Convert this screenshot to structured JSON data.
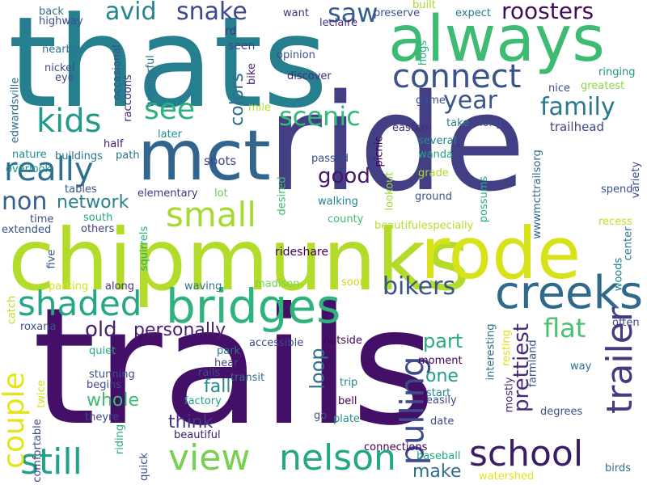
{
  "words": [
    {
      "text": "trails",
      "color": "#440f66",
      "vertical": false
    },
    {
      "text": "thats",
      "color": "#267f8e",
      "vertical": false
    },
    {
      "text": "ride",
      "color": "#433f85",
      "vertical": false
    },
    {
      "text": "chipmunks",
      "color": "#b2dc29",
      "vertical": false
    },
    {
      "text": "rode",
      "color": "#d8e219",
      "vertical": false
    },
    {
      "text": "always",
      "color": "#3ebb73",
      "vertical": false
    },
    {
      "text": "mct",
      "color": "#31658e",
      "vertical": false
    },
    {
      "text": "bridges",
      "color": "#2db37b",
      "vertical": false
    },
    {
      "text": "creeks",
      "color": "#2f6a8d",
      "vertical": false
    },
    {
      "text": "view",
      "color": "#78d052",
      "vertical": false
    },
    {
      "text": "nelson",
      "color": "#22a884",
      "vertical": false
    },
    {
      "text": "school",
      "color": "#3b1c66",
      "vertical": false
    },
    {
      "text": "still",
      "color": "#1fa288",
      "vertical": false
    },
    {
      "text": "connect",
      "color": "#3b528b",
      "vertical": false
    },
    {
      "text": "shaded",
      "color": "#24a784",
      "vertical": false
    },
    {
      "text": "really",
      "color": "#2d6f8e",
      "vertical": false
    },
    {
      "text": "kids",
      "color": "#1e9b8a",
      "vertical": false
    },
    {
      "text": "small",
      "color": "#a6da31",
      "vertical": false
    },
    {
      "text": "trailer",
      "color": "#433a83",
      "vertical": true
    },
    {
      "text": "pulling",
      "color": "#3e4a89",
      "vertical": true
    },
    {
      "text": "bikers",
      "color": "#3a548c",
      "vertical": false
    },
    {
      "text": "roosters",
      "color": "#440d5a",
      "vertical": false
    },
    {
      "text": "snake",
      "color": "#3e4989",
      "vertical": false
    },
    {
      "text": "avid",
      "color": "#25858e",
      "vertical": false
    },
    {
      "text": "saw",
      "color": "#365c8d",
      "vertical": false
    },
    {
      "text": "see",
      "color": "#2db27d",
      "vertical": false
    },
    {
      "text": "year",
      "color": "#39568c",
      "vertical": false
    },
    {
      "text": "family",
      "color": "#2a788e",
      "vertical": false
    },
    {
      "text": "scenic",
      "color": "#35b779",
      "vertical": false
    },
    {
      "text": "good",
      "color": "#481467",
      "vertical": false
    },
    {
      "text": "non",
      "color": "#355f8d",
      "vertical": false
    },
    {
      "text": "network",
      "color": "#26828e",
      "vertical": false
    },
    {
      "text": "couple",
      "color": "#e5e419",
      "vertical": true
    },
    {
      "text": "old",
      "color": "#482173",
      "vertical": false
    },
    {
      "text": "personally",
      "color": "#481d6f",
      "vertical": false
    },
    {
      "text": "flat",
      "color": "#4ac16d",
      "vertical": false
    },
    {
      "text": "prettiest",
      "color": "#482878",
      "vertical": true
    },
    {
      "text": "part",
      "color": "#27ad81",
      "vertical": false
    },
    {
      "text": "loop",
      "color": "#2c728e",
      "vertical": true
    },
    {
      "text": "one",
      "color": "#1f9e89",
      "vertical": false
    },
    {
      "text": "whole",
      "color": "#3dbc74",
      "vertical": false
    },
    {
      "text": "fall",
      "color": "#228d8d",
      "vertical": false
    },
    {
      "text": "think",
      "color": "#453781",
      "vertical": false
    },
    {
      "text": "make",
      "color": "#2d718e",
      "vertical": false
    },
    {
      "text": "colors",
      "color": "#2e6e8e",
      "vertical": true
    },
    {
      "text": "spots",
      "color": "#3f4788",
      "vertical": false
    },
    {
      "text": "back",
      "color": "#2c718e",
      "vertical": false
    },
    {
      "text": "highway",
      "color": "#3e4c8a",
      "vertical": false
    },
    {
      "text": "rd",
      "color": "#453882",
      "vertical": false
    },
    {
      "text": "seen",
      "color": "#3e4a89",
      "vertical": false
    },
    {
      "text": "want",
      "color": "#472c7a",
      "vertical": false
    },
    {
      "text": "built",
      "color": "#a2da37",
      "vertical": false
    },
    {
      "text": "preserve",
      "color": "#3b528b",
      "vertical": false
    },
    {
      "text": "expect",
      "color": "#2a7b8e",
      "vertical": false
    },
    {
      "text": "leclaire",
      "color": "#46307e",
      "vertical": false
    },
    {
      "text": "nearby",
      "color": "#2c728e",
      "vertical": false
    },
    {
      "text": "nickel",
      "color": "#3e4b8a",
      "vertical": false
    },
    {
      "text": "eye",
      "color": "#3d4e8a",
      "vertical": false
    },
    {
      "text": "occasional",
      "color": "#3a548c",
      "vertical": true
    },
    {
      "text": "raccoons",
      "color": "#482878",
      "vertical": true
    },
    {
      "text": "wonderful",
      "color": "#2d718e",
      "vertical": true
    },
    {
      "text": "bike",
      "color": "#482173",
      "vertical": true
    },
    {
      "text": "opinion",
      "color": "#3b528b",
      "vertical": false
    },
    {
      "text": "discover",
      "color": "#472a7a",
      "vertical": false
    },
    {
      "text": "hogs",
      "color": "#29af7f",
      "vertical": true
    },
    {
      "text": "ringing",
      "color": "#1f968b",
      "vertical": false
    },
    {
      "text": "nice",
      "color": "#3e4a89",
      "vertical": false
    },
    {
      "text": "greatest",
      "color": "#8bd646",
      "vertical": false
    },
    {
      "text": "edwardsville",
      "color": "#2e6f8e",
      "vertical": true
    },
    {
      "text": "mile",
      "color": "#b5de2b",
      "vertical": false
    },
    {
      "text": "game",
      "color": "#3e4c8a",
      "vertical": false
    },
    {
      "text": "take",
      "color": "#287d8e",
      "vertical": false
    },
    {
      "text": "long",
      "color": "#3b518b",
      "vertical": false
    },
    {
      "text": "trailhead",
      "color": "#414487",
      "vertical": false
    },
    {
      "text": "eastern",
      "color": "#472d7b",
      "vertical": false
    },
    {
      "text": "later",
      "color": "#228c8d",
      "vertical": false
    },
    {
      "text": "half",
      "color": "#48196b",
      "vertical": false
    },
    {
      "text": "buildings",
      "color": "#2c738e",
      "vertical": false
    },
    {
      "text": "picnic",
      "color": "#440154",
      "vertical": true
    },
    {
      "text": "several",
      "color": "#25848e",
      "vertical": false
    },
    {
      "text": "wanda",
      "color": "#20a486",
      "vertical": false
    },
    {
      "text": "nature",
      "color": "#228d8d",
      "vertical": false
    },
    {
      "text": "path",
      "color": "#2c738e",
      "vertical": false
    },
    {
      "text": "passed",
      "color": "#3e4a89",
      "vertical": false
    },
    {
      "text": "variety",
      "color": "#3e4989",
      "vertical": true
    },
    {
      "text": "grade",
      "color": "#aadc32",
      "vertical": false
    },
    {
      "text": "overlook",
      "color": "#21918c",
      "vertical": false
    },
    {
      "text": "tables",
      "color": "#3b528b",
      "vertical": false
    },
    {
      "text": "lot",
      "color": "#6ccd5a",
      "vertical": false
    },
    {
      "text": "elementary",
      "color": "#46337e",
      "vertical": false
    },
    {
      "text": "desired",
      "color": "#3fbc73",
      "vertical": true
    },
    {
      "text": "lookout",
      "color": "#9bd93c",
      "vertical": true
    },
    {
      "text": "possums",
      "color": "#27ad81",
      "vertical": true
    },
    {
      "text": "wwwmcttrailsorg",
      "color": "#31668e",
      "vertical": true
    },
    {
      "text": "spend",
      "color": "#3b518b",
      "vertical": false
    },
    {
      "text": "walking",
      "color": "#26828e",
      "vertical": false
    },
    {
      "text": "ground",
      "color": "#3b528b",
      "vertical": false
    },
    {
      "text": "time",
      "color": "#3d4e8a",
      "vertical": false
    },
    {
      "text": "south",
      "color": "#22a884",
      "vertical": false
    },
    {
      "text": "county",
      "color": "#3dbc74",
      "vertical": false
    },
    {
      "text": "recess",
      "color": "#c2df23",
      "vertical": false
    },
    {
      "text": "extended",
      "color": "#3b518b",
      "vertical": false
    },
    {
      "text": "others",
      "color": "#404588",
      "vertical": false
    },
    {
      "text": "beautifulespecially",
      "color": "#b5de2b",
      "vertical": false
    },
    {
      "text": "center",
      "color": "#2a7b8e",
      "vertical": true
    },
    {
      "text": "squirrels",
      "color": "#27ad81",
      "vertical": true
    },
    {
      "text": "rideshare",
      "color": "#440154",
      "vertical": false
    },
    {
      "text": "woods",
      "color": "#25848e",
      "vertical": true
    },
    {
      "text": "five",
      "color": "#3a548c",
      "vertical": true
    },
    {
      "text": "parking",
      "color": "#d5e21a",
      "vertical": false
    },
    {
      "text": "along",
      "color": "#46337e",
      "vertical": false
    },
    {
      "text": "madison",
      "color": "#7ad151",
      "vertical": false
    },
    {
      "text": "soon",
      "color": "#ddd21b",
      "vertical": false
    },
    {
      "text": "waving",
      "color": "#2c728e",
      "vertical": false
    },
    {
      "text": "catch",
      "color": "#bddf26",
      "vertical": true
    },
    {
      "text": "roxana",
      "color": "#3b528b",
      "vertical": false
    },
    {
      "text": "often",
      "color": "#3e4c8a",
      "vertical": false
    },
    {
      "text": "accessible",
      "color": "#3e4989",
      "vertical": false
    },
    {
      "text": "outside",
      "color": "#440154",
      "vertical": false
    },
    {
      "text": "resting",
      "color": "#e0e018",
      "vertical": true
    },
    {
      "text": "interesting",
      "color": "#2c738e",
      "vertical": true
    },
    {
      "text": "quiet",
      "color": "#25ab82",
      "vertical": false
    },
    {
      "text": "park",
      "color": "#2a778e",
      "vertical": false
    },
    {
      "text": "hear",
      "color": "#414487",
      "vertical": false
    },
    {
      "text": "moment",
      "color": "#440154",
      "vertical": false
    },
    {
      "text": "farmland",
      "color": "#3b528b",
      "vertical": true
    },
    {
      "text": "way",
      "color": "#2e6e8e",
      "vertical": false
    },
    {
      "text": "mostly",
      "color": "#482878",
      "vertical": true
    },
    {
      "text": "stunning",
      "color": "#3b518b",
      "vertical": false
    },
    {
      "text": "rails",
      "color": "#3e4c8a",
      "vertical": false
    },
    {
      "text": "transit",
      "color": "#2d718e",
      "vertical": false
    },
    {
      "text": "trip",
      "color": "#23898e",
      "vertical": false
    },
    {
      "text": "twice",
      "color": "#d1e21b",
      "vertical": true
    },
    {
      "text": "begins",
      "color": "#3e4a89",
      "vertical": false
    },
    {
      "text": "start",
      "color": "#25848e",
      "vertical": false
    },
    {
      "text": "bell",
      "color": "#440154",
      "vertical": false
    },
    {
      "text": "easily",
      "color": "#3e4c8a",
      "vertical": false
    },
    {
      "text": "factory",
      "color": "#20a386",
      "vertical": false
    },
    {
      "text": "degrees",
      "color": "#3b528b",
      "vertical": false
    },
    {
      "text": "comfortable",
      "color": "#3e4989",
      "vertical": true
    },
    {
      "text": "theyre",
      "color": "#3f4788",
      "vertical": false
    },
    {
      "text": "riding",
      "color": "#25ab82",
      "vertical": true
    },
    {
      "text": "go",
      "color": "#3b528b",
      "vertical": false
    },
    {
      "text": "plate",
      "color": "#21918c",
      "vertical": false
    },
    {
      "text": "date",
      "color": "#3e4a89",
      "vertical": false
    },
    {
      "text": "beautiful",
      "color": "#3b1c66",
      "vertical": false
    },
    {
      "text": "quick",
      "color": "#3e4c8a",
      "vertical": true
    },
    {
      "text": "connections",
      "color": "#440154",
      "vertical": false
    },
    {
      "text": "baseball",
      "color": "#22a884",
      "vertical": false
    },
    {
      "text": "watershed",
      "color": "#e5e419",
      "vertical": false
    },
    {
      "text": "birds",
      "color": "#2d718e",
      "vertical": false
    }
  ]
}
